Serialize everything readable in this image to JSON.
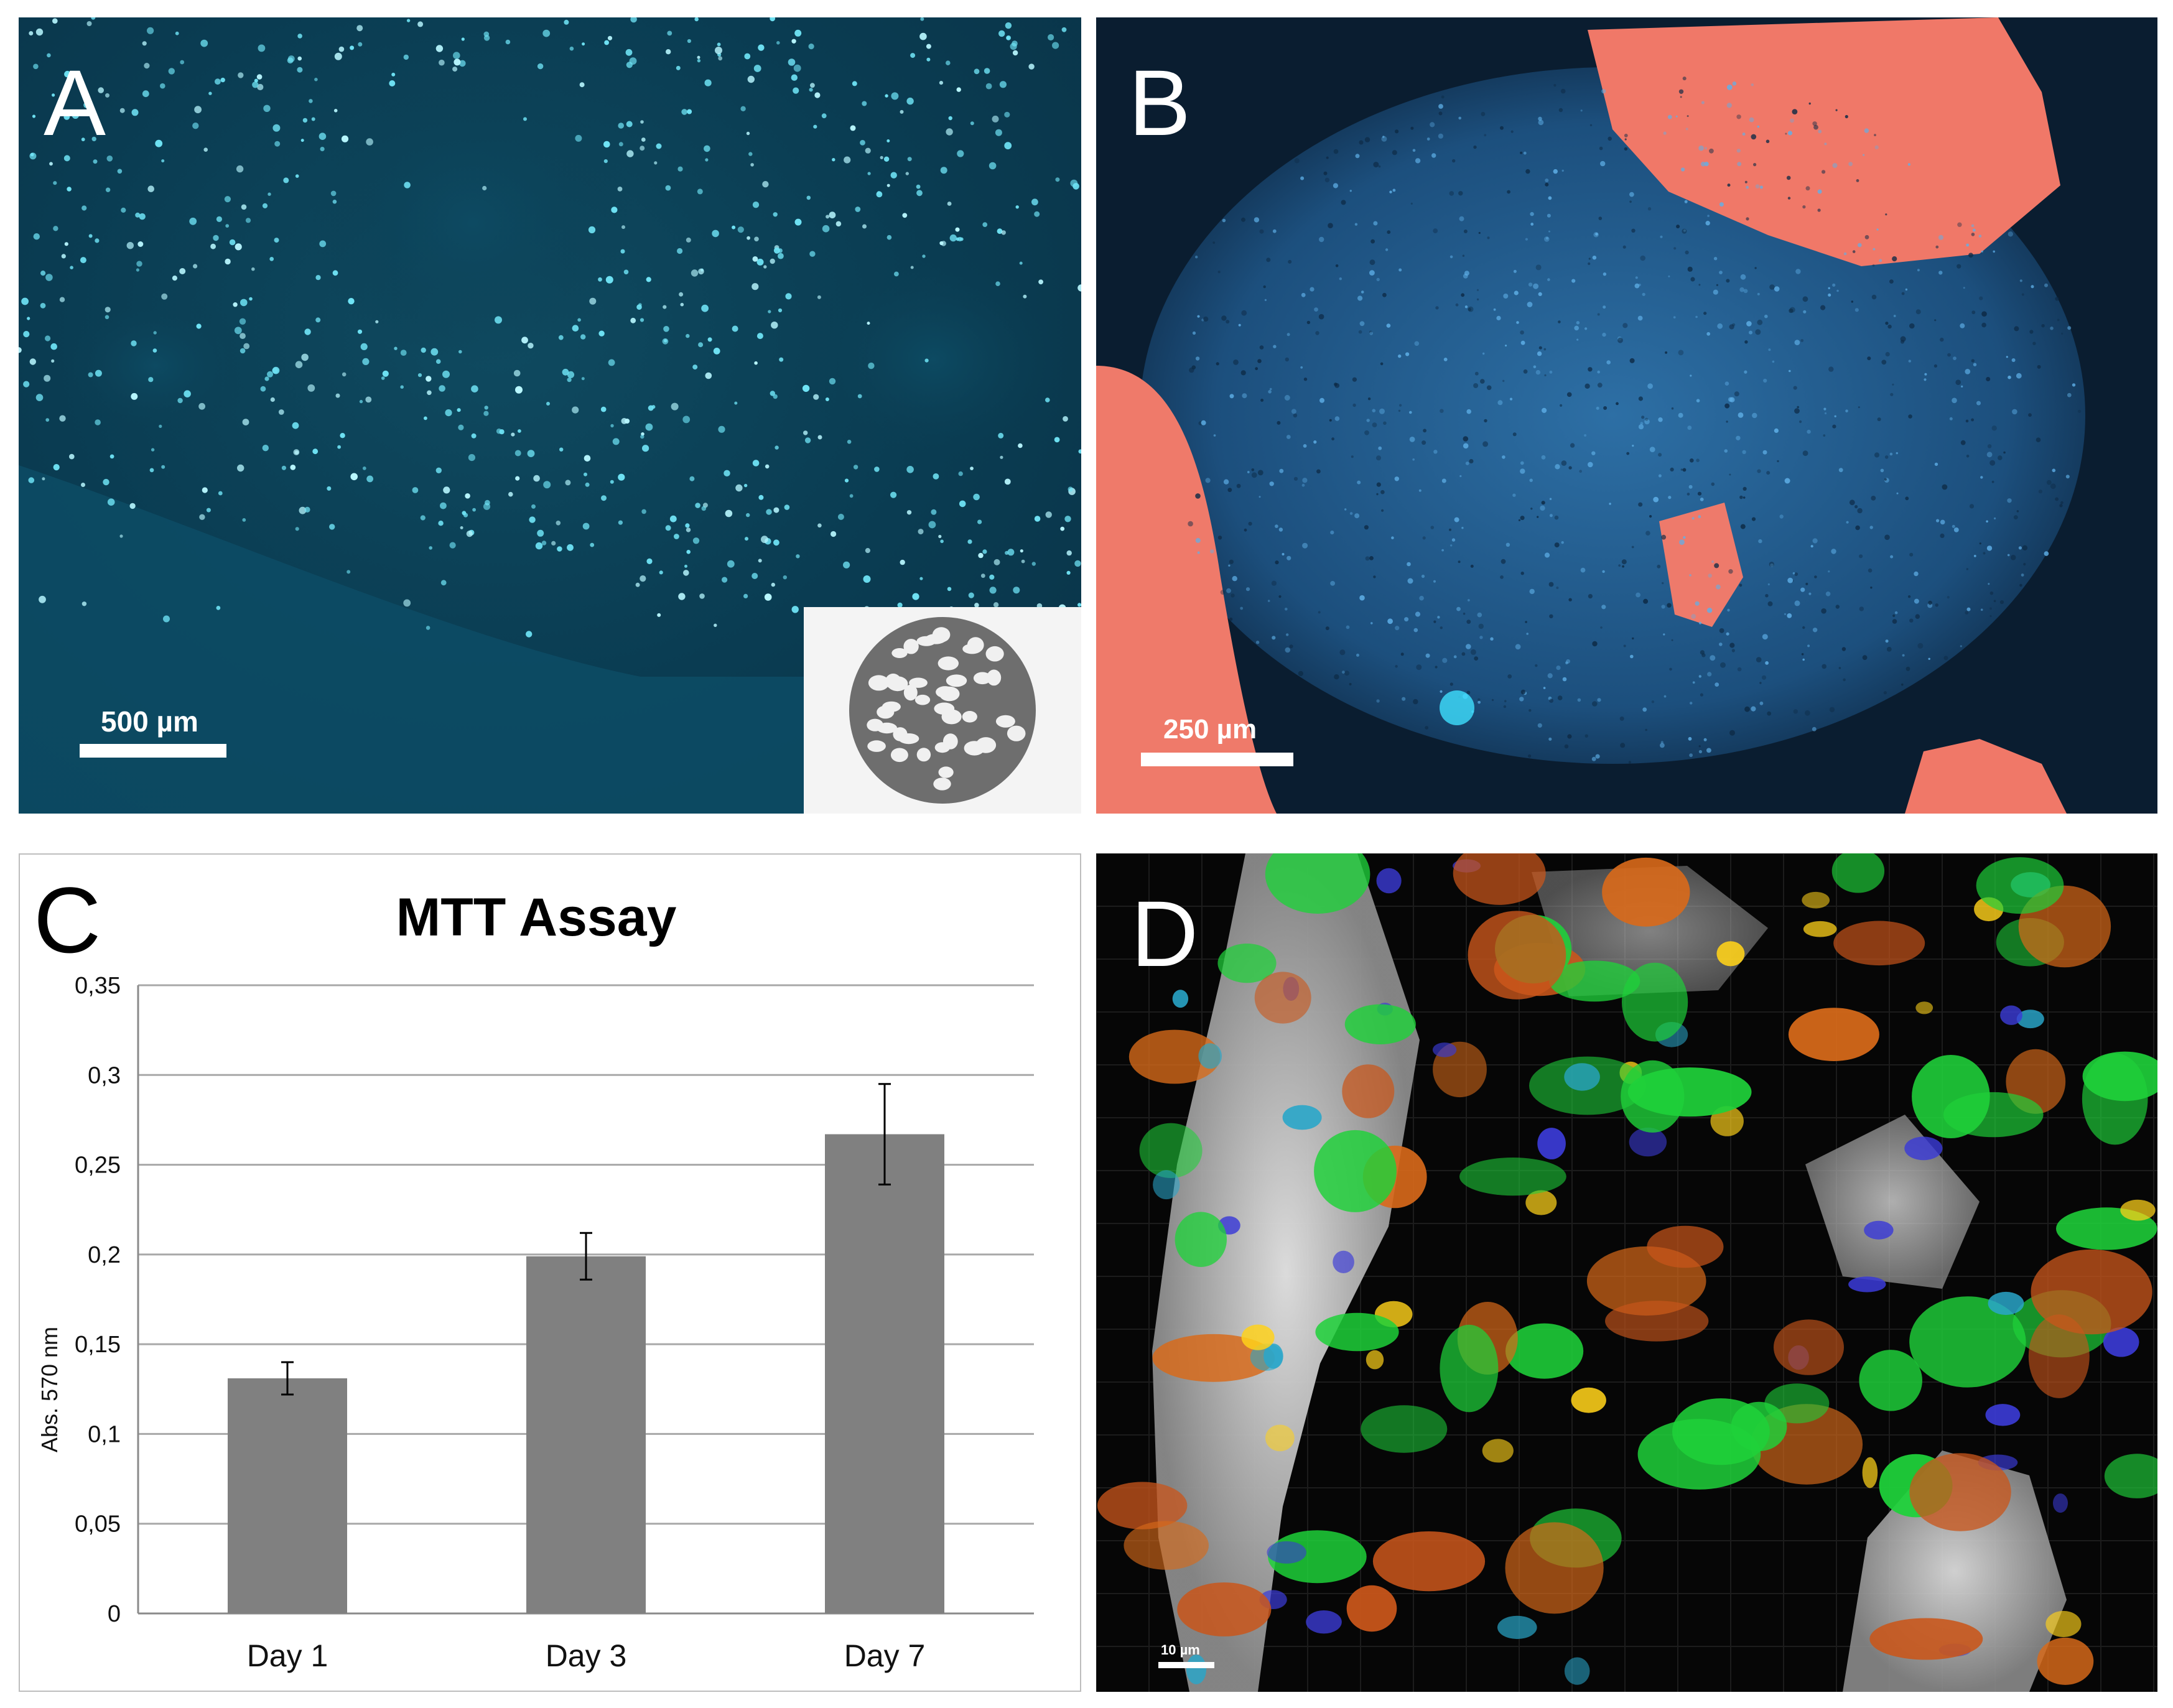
{
  "panels": {
    "a": {
      "letter": "A",
      "scale_label": "500 µm",
      "letter_color": "#ffffff"
    },
    "b": {
      "letter": "B",
      "scale_label": "250 µm",
      "letter_color": "#ffffff"
    },
    "c": {
      "letter": "C",
      "letter_color": "#000000"
    },
    "d": {
      "letter": "D",
      "scale_label": "10 µm",
      "letter_color": "#ffffff"
    }
  },
  "chart_data": {
    "type": "bar",
    "title": "MTT Assay",
    "xlabel": "",
    "ylabel": "Abs. 570 nm",
    "categories": [
      "Day 1",
      "Day 3",
      "Day 7"
    ],
    "values": [
      0.131,
      0.199,
      0.267
    ],
    "errors": [
      0.009,
      0.013,
      0.028
    ],
    "ylim": [
      0,
      0.35
    ],
    "yticks": [
      "0",
      "0,05",
      "0,1",
      "0,15",
      "0,2",
      "0,25",
      "0,3",
      "0,35"
    ],
    "grid": true,
    "bar_color": "#808080",
    "legend": "none"
  }
}
